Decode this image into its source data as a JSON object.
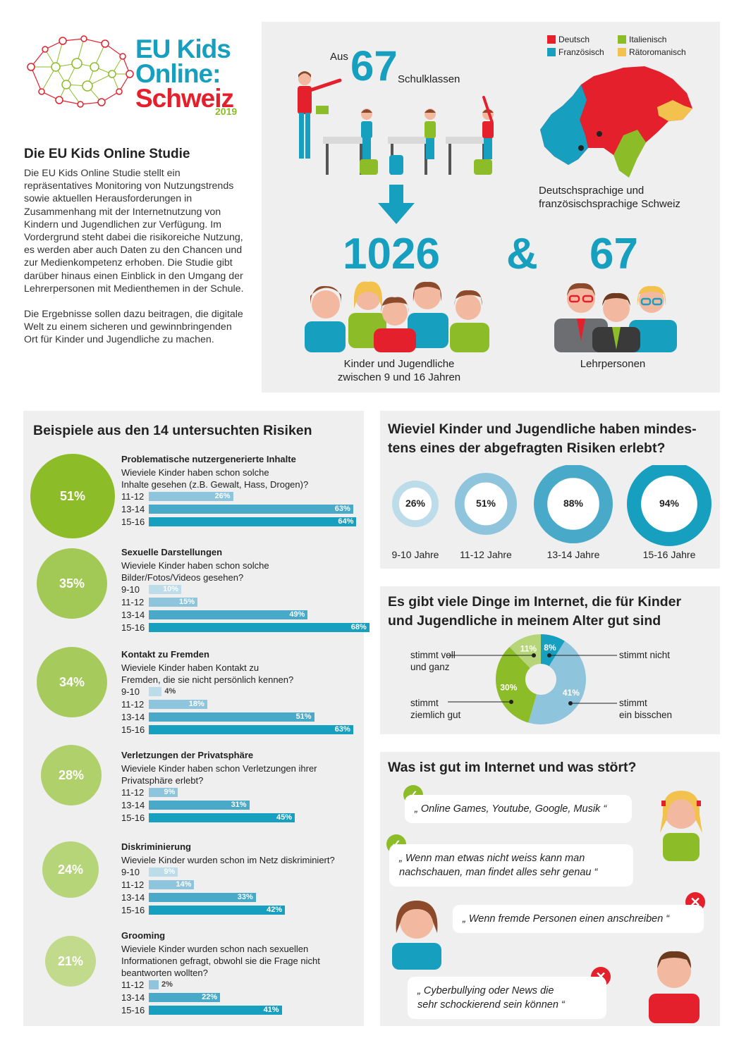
{
  "logo": {
    "line1": "EU Kids",
    "line2": "Online:",
    "line3": "Schweiz",
    "year": "2019"
  },
  "intro": {
    "heading": "Die EU Kids Online Studie",
    "paragraph1": "Die EU Kids Online Studie stellt ein repräsentatives Monitoring von Nutzungstrends sowie aktuellen Herausforderungen in Zusammenhang mit der Internetnutzung von Kindern und Jugendlichen zur Verfügung. Im Vordergrund steht dabei die risikoreiche Nutzung, es werden aber auch Daten zu den Chancen und zur Medienkompetenz erhoben. Die Studie gibt darüber hinaus einen Einblick in den Umgang der Lehrerpersonen mit Medienthemen in der Schule.",
    "paragraph2": "Die Ergebnisse sollen dazu beitragen, die digitale Welt zu einem sicheren und gewinnbringenden Ort für Kinder und Jugendliche zu machen."
  },
  "study": {
    "aus": "Aus",
    "classes_num": "67",
    "classes_label": "Schulklassen",
    "children_num": "1026",
    "ampersand": "&",
    "teachers_num": "67",
    "children_caption_1": "Kinder und Jugendliche",
    "children_caption_2": "zwischen 9 und 16 Jahren",
    "teachers_caption": "Lehrpersonen",
    "map_caption_1": "Deutschsprachige und",
    "map_caption_2": "französischsprachige Schweiz",
    "legend": [
      {
        "label": "Deutsch",
        "color": "#e4202c"
      },
      {
        "label": "Italienisch",
        "color": "#8cbd28"
      },
      {
        "label": "Französisch",
        "color": "#179fc0"
      },
      {
        "label": "Rätoromanisch",
        "color": "#f2c14e"
      }
    ]
  },
  "risks": {
    "title": "Beispiele aus den 14 untersuchten Risiken",
    "items": [
      {
        "pct": "51%",
        "color": "#8cbd28",
        "title": "Problematische nutzergenerierte Inhalte",
        "q1": "Wieviele Kinder haben schon solche",
        "q2": "Inhalte gesehen (z.B. Gewalt, Hass, Drogen)?",
        "bars": [
          {
            "age": "11-12",
            "value": 26,
            "label": "26%"
          },
          {
            "age": "13-14",
            "value": 63,
            "label": "63%"
          },
          {
            "age": "15-16",
            "value": 64,
            "label": "64%"
          }
        ]
      },
      {
        "pct": "35%",
        "color": "#a2c856",
        "title": "Sexuelle Darstellungen",
        "q1": "Wieviele Kinder haben schon solche",
        "q2": "Bilder/Fotos/Videos gesehen?",
        "bars": [
          {
            "age": "9-10",
            "value": 10,
            "label": "10%"
          },
          {
            "age": "11-12",
            "value": 15,
            "label": "15%"
          },
          {
            "age": "13-14",
            "value": 49,
            "label": "49%"
          },
          {
            "age": "15-16",
            "value": 68,
            "label": "68%"
          }
        ]
      },
      {
        "pct": "34%",
        "color": "#a6cb5c",
        "title": "Kontakt zu Fremden",
        "q1": "Wieviele Kinder haben Kontakt zu",
        "q2": "Fremden, die sie nicht persönlich kennen?",
        "bars": [
          {
            "age": "9-10",
            "value": 4,
            "label": "4%"
          },
          {
            "age": "11-12",
            "value": 18,
            "label": "18%"
          },
          {
            "age": "13-14",
            "value": 51,
            "label": "51%"
          },
          {
            "age": "15-16",
            "value": 63,
            "label": "63%"
          }
        ]
      },
      {
        "pct": "28%",
        "color": "#b0d06c",
        "title": "Verletzungen der Privatsphäre",
        "q1": "Wieviele Kinder haben schon Verletzungen ihrer",
        "q2": "Privatsphäre erlebt?",
        "bars": [
          {
            "age": "11-12",
            "value": 9,
            "label": "9%"
          },
          {
            "age": "13-14",
            "value": 31,
            "label": "31%"
          },
          {
            "age": "15-16",
            "value": 45,
            "label": "45%"
          }
        ]
      },
      {
        "pct": "24%",
        "color": "#b6d478",
        "title": "Diskriminierung",
        "q1": "Wieviele Kinder wurden schon im Netz diskriminiert?",
        "q2": "",
        "bars": [
          {
            "age": "9-10",
            "value": 9,
            "label": "9%"
          },
          {
            "age": "11-12",
            "value": 14,
            "label": "14%"
          },
          {
            "age": "13-14",
            "value": 33,
            "label": "33%"
          },
          {
            "age": "15-16",
            "value": 42,
            "label": "42%"
          }
        ]
      },
      {
        "pct": "21%",
        "color": "#c2da8c",
        "title": "Grooming",
        "q1": "Wieviele Kinder wurden schon nach sexuellen",
        "q2": "Informationen gefragt, obwohl sie die Frage nicht",
        "q3": "beantworten wollten?",
        "bars": [
          {
            "age": "11-12",
            "value": 2,
            "label": "2%"
          },
          {
            "age": "13-14",
            "value": 22,
            "label": "22%"
          },
          {
            "age": "15-16",
            "value": 41,
            "label": "41%"
          }
        ]
      }
    ]
  },
  "experienced": {
    "title_1": "Wieviel Kinder und Jugendliche haben mindes-",
    "title_2": "tens eines der abgefragten Risiken erlebt?",
    "rings": [
      {
        "age": "9-10 Jahre",
        "value": 26,
        "label": "26%",
        "color": "#bcdcea"
      },
      {
        "age": "11-12 Jahre",
        "value": 51,
        "label": "51%",
        "color": "#8ec5dc"
      },
      {
        "age": "13-14 Jahre",
        "value": 88,
        "label": "88%",
        "color": "#48a9c9"
      },
      {
        "age": "15-16 Jahre",
        "value": 94,
        "label": "94%",
        "color": "#179fc0"
      }
    ]
  },
  "good_things": {
    "title_1": "Es gibt viele Dinge im Internet, die für Kinder",
    "title_2": "und Jugendliche in meinem Alter gut sind",
    "slices": [
      {
        "label": "stimmt nicht",
        "value": 8,
        "pct": "8%",
        "color": "#179fc0"
      },
      {
        "label": "stimmt ein bisschen",
        "value": 41,
        "pct": "41%",
        "color": "#8ec5dc"
      },
      {
        "label": "stimmt ziemlich gut",
        "value": 30,
        "pct": "30%",
        "color": "#8cbd28"
      },
      {
        "label": "stimmt voll und ganz",
        "value": 11,
        "pct": "11%",
        "color": "#b6d478"
      }
    ],
    "lbl_voll_1": "stimmt voll",
    "lbl_voll_2": "und ganz",
    "lbl_nicht": "stimmt nicht",
    "lbl_ziemlich_1": "stimmt",
    "lbl_ziemlich_2": "ziemlich gut",
    "lbl_bisschen_1": "stimmt",
    "lbl_bisschen_2": "ein bisschen"
  },
  "good_bad": {
    "title": "Was ist gut im Internet und was stört?",
    "q1": "„ Online Games, Youtube, Google, Musik “",
    "q2a": "„ Wenn man etwas nicht weiss kann man",
    "q2b": "nachschauen, man findet alles sehr genau “",
    "q3": "„ Wenn fremde Personen einen anschreiben “",
    "q4a": "„ Cyberbullying oder News die",
    "q4b": "sehr schockierend sein können “",
    "check_symbol": "✓",
    "cross_symbol": "✕"
  }
}
